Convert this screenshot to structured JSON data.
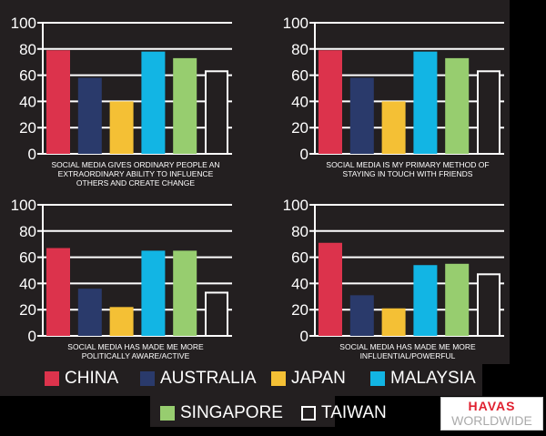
{
  "chart_data": [
    {
      "type": "bar",
      "title": "SOCIAL MEDIA GIVES ORDINARY PEOPLE AN EXTRAORDINARY ABILITY TO INFLUENCE OTHERS AND CREATE CHANGE",
      "caption_lines": [
        "SOCIAL MEDIA GIVES ORDINARY PEOPLE AN",
        "EXTRAORDINARY ABILITY TO INFLUENCE",
        "OTHERS AND CREATE CHANGE"
      ],
      "categories": [
        "China",
        "Australia",
        "Japan",
        "Malaysia",
        "Singapore",
        "Taiwan"
      ],
      "values": [
        79,
        58,
        40,
        78,
        73,
        63
      ],
      "ylim": [
        0,
        100
      ],
      "yticks": [
        "0",
        "20",
        "40",
        "60",
        "80",
        "100"
      ]
    },
    {
      "type": "bar",
      "title": "SOCIAL MEDIA IS MY PRIMARY METHOD OF STAYING IN TOUCH WITH FRIENDS",
      "caption_lines": [
        "SOCIAL MEDIA IS MY PRIMARY METHOD OF",
        "STAYING IN TOUCH WITH FRIENDS"
      ],
      "categories": [
        "China",
        "Australia",
        "Japan",
        "Malaysia",
        "Singapore",
        "Taiwan"
      ],
      "values": [
        79,
        58,
        40,
        78,
        73,
        63
      ],
      "ylim": [
        0,
        100
      ],
      "yticks": [
        "0",
        "20",
        "40",
        "60",
        "80",
        "100"
      ]
    },
    {
      "type": "bar",
      "title": "SOCIAL MEDIA HAS MADE ME MORE POLITICALLY AWARE/ACTIVE",
      "caption_lines": [
        "SOCIAL MEDIA HAS MADE ME MORE",
        "POLITICALLY AWARE/ACTIVE"
      ],
      "categories": [
        "China",
        "Australia",
        "Japan",
        "Malaysia",
        "Singapore",
        "Taiwan"
      ],
      "values": [
        67,
        36,
        22,
        65,
        65,
        33
      ],
      "ylim": [
        0,
        100
      ],
      "yticks": [
        "0",
        "20",
        "40",
        "60",
        "80",
        "100"
      ]
    },
    {
      "type": "bar",
      "title": "SOCIAL MEDIA HAS MADE ME MORE INFLUENTIAL/POWERFUL",
      "caption_lines": [
        "SOCIAL MEDIA HAS MADE ME MORE",
        "INFLUENTIAL/POWERFUL"
      ],
      "categories": [
        "China",
        "Australia",
        "Japan",
        "Malaysia",
        "Singapore",
        "Taiwan"
      ],
      "values": [
        71,
        31,
        21,
        54,
        55,
        47
      ],
      "ylim": [
        0,
        100
      ],
      "yticks": [
        "0",
        "20",
        "40",
        "60",
        "80",
        "100"
      ]
    }
  ],
  "legend": [
    {
      "label": "CHINA",
      "color": "#dc334c"
    },
    {
      "label": "AUSTRALIA",
      "color": "#2a3a6b"
    },
    {
      "label": "JAPAN",
      "color": "#f4c035"
    },
    {
      "label": "MALAYSIA",
      "color": "#12b5e4"
    },
    {
      "label": "SINGAPORE",
      "color": "#97cd6f"
    },
    {
      "label": "TAIWAN",
      "color": "none"
    }
  ],
  "logo": {
    "line1": "HAVAS",
    "line2": "WORLDWIDE"
  }
}
